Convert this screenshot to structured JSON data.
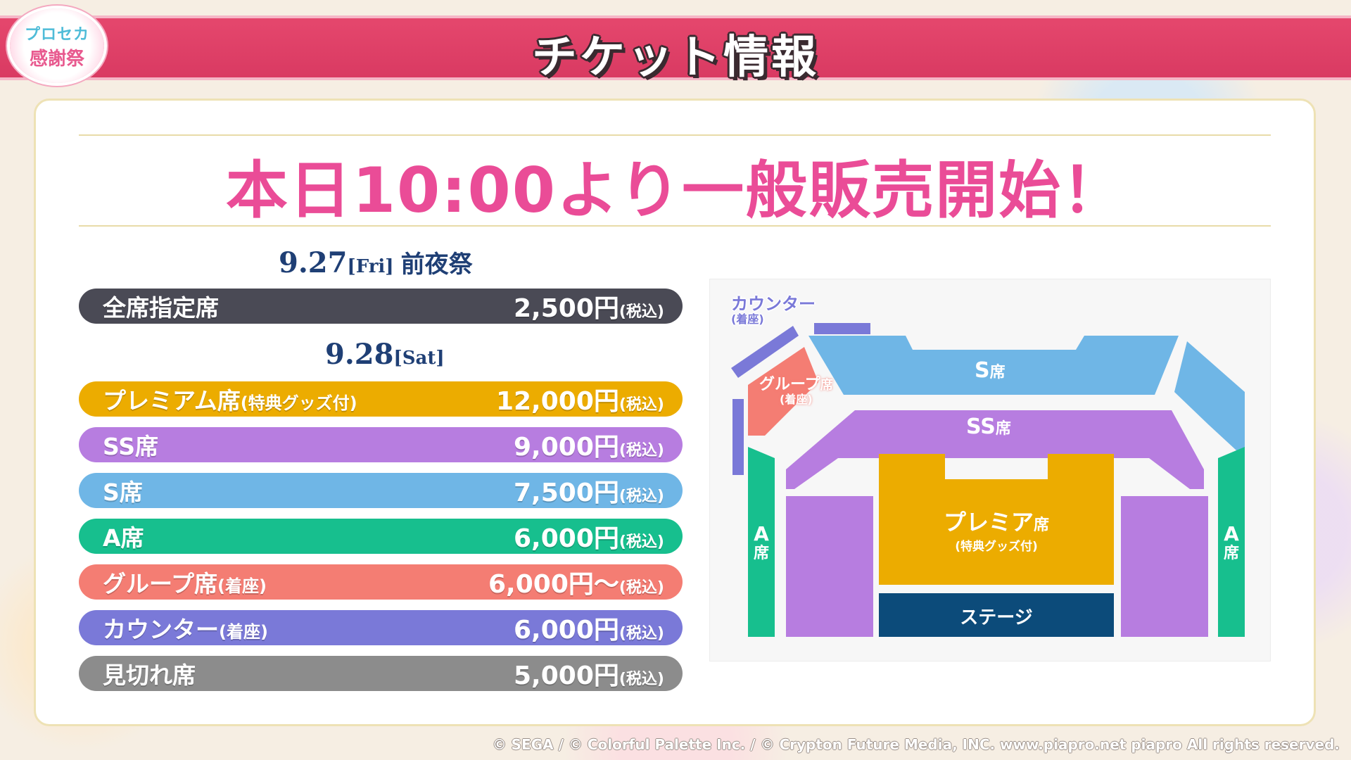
{
  "logo": {
    "line1": "プロセカ",
    "line2": "感謝祭"
  },
  "header": {
    "title": "チケット情報"
  },
  "headline": "本日10:00より一般販売開始！",
  "day1": {
    "date": "9.27",
    "weekday": "[Fri]",
    "event": "前夜祭"
  },
  "day2": {
    "date": "9.28",
    "weekday": "[Sat]"
  },
  "tickets_day1": [
    {
      "name": "全席指定席",
      "sub": "",
      "price": "2,500円",
      "tax": "(税込)",
      "color": "#4a4a55"
    }
  ],
  "tickets_day2": [
    {
      "name": "プレミアム席",
      "sub": "(特典グッズ付)",
      "price": "12,000円",
      "tax": "(税込)",
      "color": "#ecac00"
    },
    {
      "name": "SS席",
      "sub": "",
      "price": "9,000円",
      "tax": "(税込)",
      "color": "#b77de0"
    },
    {
      "name": "S席",
      "sub": "",
      "price": "7,500円",
      "tax": "(税込)",
      "color": "#6fb6e6"
    },
    {
      "name": "A席",
      "sub": "",
      "price": "6,000円",
      "tax": "(税込)",
      "color": "#17bf8e"
    },
    {
      "name": "グループ席",
      "sub": "(着座)",
      "price": "6,000円〜",
      "tax": "(税込)",
      "color": "#f47d73"
    },
    {
      "name": "カウンター",
      "sub": "(着座)",
      "price": "6,000円",
      "tax": "(税込)",
      "color": "#7a79d8"
    },
    {
      "name": "見切れ席",
      "sub": "",
      "price": "5,000円",
      "tax": "(税込)",
      "color": "#8c8c8c"
    }
  ],
  "seat_map": {
    "counter": {
      "name": "カウンター",
      "sub": "(着座)"
    },
    "group": {
      "name": "グループ",
      "kanji": "席",
      "sub": "(着座)"
    },
    "s": {
      "name": "S",
      "kanji": "席"
    },
    "ss": {
      "name": "SS",
      "kanji": "席"
    },
    "premium": {
      "name": "プレミア",
      "kanji": "席",
      "sub": "(特典グッズ付)"
    },
    "a_left": {
      "name": "A",
      "kanji": "席"
    },
    "a_right": {
      "name": "A",
      "kanji": "席"
    },
    "stage": "ステージ"
  },
  "copyright": "© SEGA / © Colorful Palette Inc. / © Crypton Future Media, INC. www.piapro.net piapro All rights reserved."
}
